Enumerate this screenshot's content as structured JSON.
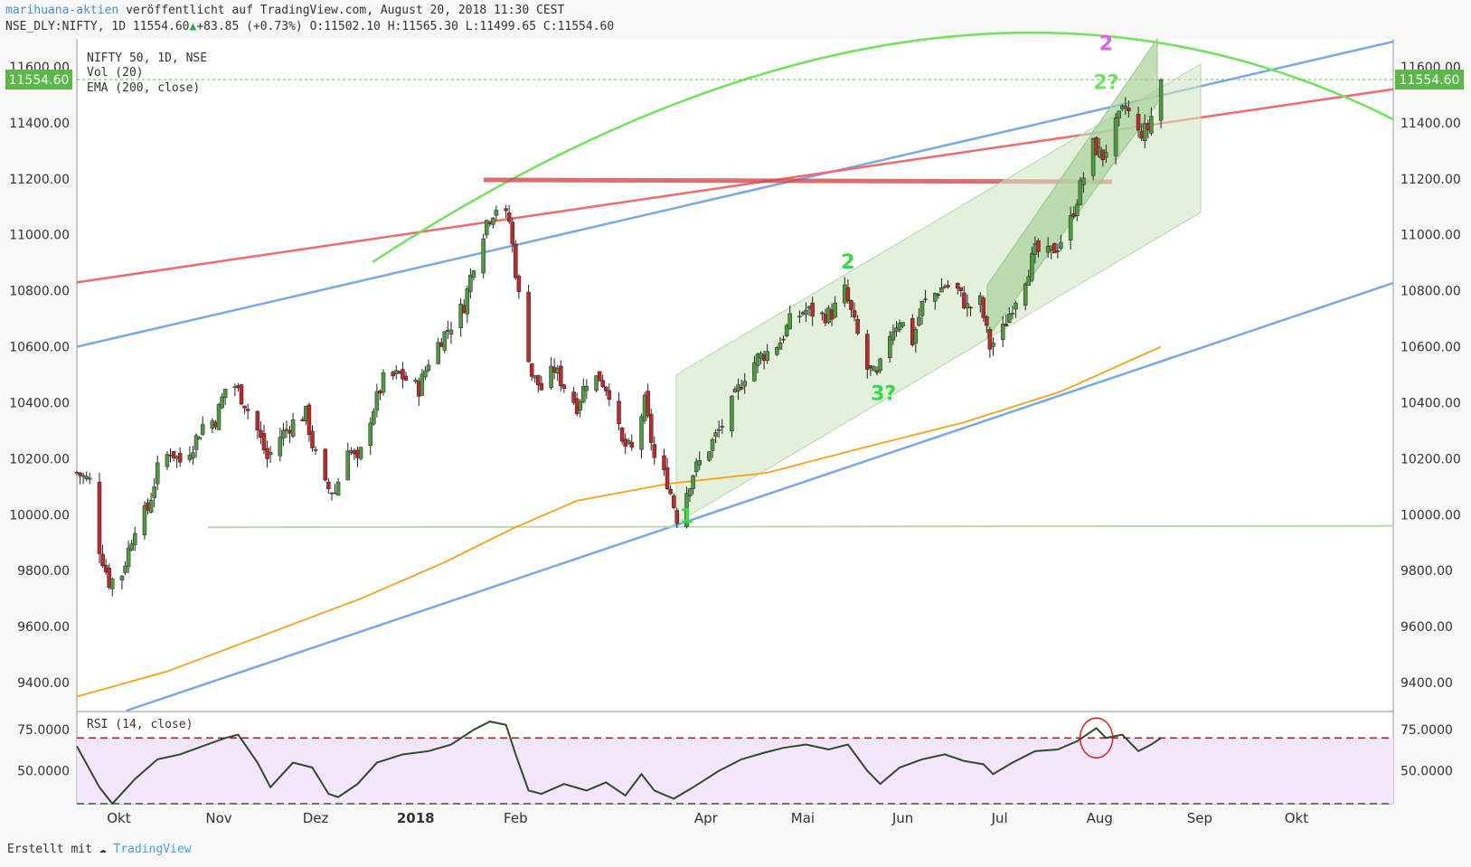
{
  "header": {
    "author": "marihuana-aktien",
    "published": "veröffentlicht auf TradingView.com, August 20, 2018 11:30 CEST",
    "symbol": "NSE_DLY:NIFTY, 1D",
    "last": "11554.60",
    "arrow": "▲",
    "change": "+83.85 (+0.73%)",
    "o_label": "O:",
    "o": "11502.10",
    "h_label": "H:",
    "h": "11565.30",
    "l_label": "L:",
    "l": "11499.65",
    "c_label": "C:",
    "c": "11554.60"
  },
  "legend": {
    "line1": "NIFTY 50, 1D, NSE",
    "line2": "Vol (20)",
    "line3": "EMA (200, close)"
  },
  "rsi_legend": "RSI (14, close)",
  "footer": {
    "made_with": "Erstellt mit",
    "brand": "TradingView"
  },
  "colors": {
    "up": "#4e9a3f",
    "down": "#c0282b",
    "ema": "#f5a11a",
    "rsi": "#2f4a2a",
    "rsi_band": "#f3e6fb",
    "blue_trend": "#7ba7e8",
    "red_trend": "#ef6b6b",
    "green_arc": "#6fe35a",
    "channel": "#cfe6c4",
    "price_tag": "#5bb848"
  },
  "chart_data": {
    "type": "candlestick",
    "title": "NIFTY 50, 1D, NSE",
    "price_axis": {
      "min": 9300,
      "max": 11700,
      "ticks": [
        9400,
        9600,
        9800,
        10000,
        10200,
        10400,
        10600,
        10800,
        11000,
        11200,
        11400,
        11600
      ],
      "tick_labels": [
        "9400.00",
        "9600.00",
        "9800.00",
        "10000.00",
        "10200.00",
        "10400.00",
        "10600.00",
        "10800.00",
        "11000.00",
        "11200.00",
        "11400.00",
        "11600.00"
      ],
      "last_price": 11554.6,
      "last_price_label": "11554.60"
    },
    "time_axis": {
      "start": "2017-09-18",
      "end": "2018-10-31",
      "ticks": [
        {
          "date": "2017-10-01",
          "label": "Okt"
        },
        {
          "date": "2017-11-01",
          "label": "Nov"
        },
        {
          "date": "2017-12-01",
          "label": "Dez"
        },
        {
          "date": "2018-01-01",
          "label": "2018"
        },
        {
          "date": "2018-02-01",
          "label": "Feb"
        },
        {
          "date": "2018-04-01",
          "label": "Apr"
        },
        {
          "date": "2018-05-01",
          "label": "Mai"
        },
        {
          "date": "2018-06-01",
          "label": "Jun"
        },
        {
          "date": "2018-07-01",
          "label": "Jul"
        },
        {
          "date": "2018-08-01",
          "label": "Aug"
        },
        {
          "date": "2018-09-01",
          "label": "Sep"
        },
        {
          "date": "2018-10-01",
          "label": "Okt"
        }
      ]
    },
    "close_anchors": [
      [
        "2017-09-18",
        10150
      ],
      [
        "2017-09-22",
        10120
      ],
      [
        "2017-09-25",
        9880
      ],
      [
        "2017-09-28",
        9760
      ],
      [
        "2017-10-02",
        9790
      ],
      [
        "2017-10-06",
        9960
      ],
      [
        "2017-10-10",
        10020
      ],
      [
        "2017-10-13",
        10160
      ],
      [
        "2017-10-17",
        10230
      ],
      [
        "2017-10-20",
        10190
      ],
      [
        "2017-10-24",
        10250
      ],
      [
        "2017-10-27",
        10320
      ],
      [
        "2017-10-31",
        10340
      ],
      [
        "2017-11-03",
        10450
      ],
      [
        "2017-11-06",
        10460
      ],
      [
        "2017-11-09",
        10400
      ],
      [
        "2017-11-13",
        10300
      ],
      [
        "2017-11-16",
        10200
      ],
      [
        "2017-11-20",
        10280
      ],
      [
        "2017-11-24",
        10330
      ],
      [
        "2017-11-28",
        10360
      ],
      [
        "2017-11-30",
        10250
      ],
      [
        "2017-12-04",
        10100
      ],
      [
        "2017-12-07",
        10080
      ],
      [
        "2017-12-11",
        10250
      ],
      [
        "2017-12-14",
        10180
      ],
      [
        "2017-12-18",
        10350
      ],
      [
        "2017-12-22",
        10480
      ],
      [
        "2017-12-27",
        10500
      ],
      [
        "2018-01-02",
        10450
      ],
      [
        "2018-01-05",
        10550
      ],
      [
        "2018-01-09",
        10630
      ],
      [
        "2018-01-12",
        10680
      ],
      [
        "2018-01-16",
        10750
      ],
      [
        "2018-01-19",
        10900
      ],
      [
        "2018-01-23",
        11050
      ],
      [
        "2018-01-26",
        11100
      ],
      [
        "2018-01-30",
        11050
      ],
      [
        "2018-02-02",
        10780
      ],
      [
        "2018-02-06",
        10500
      ],
      [
        "2018-02-09",
        10450
      ],
      [
        "2018-02-13",
        10520
      ],
      [
        "2018-02-16",
        10460
      ],
      [
        "2018-02-20",
        10390
      ],
      [
        "2018-02-23",
        10480
      ],
      [
        "2018-02-27",
        10490
      ],
      [
        "2018-03-02",
        10440
      ],
      [
        "2018-03-06",
        10250
      ],
      [
        "2018-03-09",
        10230
      ],
      [
        "2018-03-13",
        10400
      ],
      [
        "2018-03-16",
        10200
      ],
      [
        "2018-03-20",
        10120
      ],
      [
        "2018-03-23",
        9990
      ],
      [
        "2018-03-28",
        10150
      ],
      [
        "2018-04-02",
        10240
      ],
      [
        "2018-04-06",
        10320
      ],
      [
        "2018-04-10",
        10420
      ],
      [
        "2018-04-13",
        10500
      ],
      [
        "2018-04-17",
        10560
      ],
      [
        "2018-04-20",
        10580
      ],
      [
        "2018-04-24",
        10620
      ],
      [
        "2018-04-27",
        10690
      ],
      [
        "2018-05-02",
        10730
      ],
      [
        "2018-05-07",
        10710
      ],
      [
        "2018-05-10",
        10720
      ],
      [
        "2018-05-14",
        10800
      ],
      [
        "2018-05-17",
        10680
      ],
      [
        "2018-05-21",
        10520
      ],
      [
        "2018-05-24",
        10490
      ],
      [
        "2018-05-28",
        10650
      ],
      [
        "2018-05-31",
        10700
      ],
      [
        "2018-06-04",
        10620
      ],
      [
        "2018-06-07",
        10750
      ],
      [
        "2018-06-11",
        10790
      ],
      [
        "2018-06-14",
        10820
      ],
      [
        "2018-06-18",
        10800
      ],
      [
        "2018-06-21",
        10740
      ],
      [
        "2018-06-25",
        10760
      ],
      [
        "2018-06-28",
        10600
      ],
      [
        "2018-07-02",
        10660
      ],
      [
        "2018-07-05",
        10750
      ],
      [
        "2018-07-09",
        10850
      ],
      [
        "2018-07-12",
        10940
      ],
      [
        "2018-07-16",
        10930
      ],
      [
        "2018-07-19",
        10960
      ],
      [
        "2018-07-23",
        11050
      ],
      [
        "2018-07-26",
        11170
      ],
      [
        "2018-07-30",
        11320
      ],
      [
        "2018-08-02",
        11280
      ],
      [
        "2018-08-06",
        11390
      ],
      [
        "2018-08-09",
        11460
      ],
      [
        "2018-08-13",
        11360
      ],
      [
        "2018-08-16",
        11380
      ],
      [
        "2018-08-20",
        11554.6
      ]
    ],
    "ema_200": [
      [
        "2017-09-18",
        9350
      ],
      [
        "2017-10-16",
        9440
      ],
      [
        "2017-11-15",
        9570
      ],
      [
        "2017-12-15",
        9700
      ],
      [
        "2018-01-10",
        9830
      ],
      [
        "2018-01-31",
        9950
      ],
      [
        "2018-02-20",
        10050
      ],
      [
        "2018-03-20",
        10110
      ],
      [
        "2018-04-20",
        10150
      ],
      [
        "2018-05-20",
        10240
      ],
      [
        "2018-06-20",
        10330
      ],
      [
        "2018-07-20",
        10440
      ],
      [
        "2018-08-20",
        10600
      ]
    ],
    "rsi": {
      "axis": {
        "ticks": [
          50,
          75
        ],
        "tick_labels": [
          "50.0000",
          "75.0000"
        ],
        "min": 30,
        "max": 85
      },
      "overbought": 70,
      "oversold": 30,
      "values": [
        [
          "2017-09-18",
          65
        ],
        [
          "2017-09-25",
          40
        ],
        [
          "2017-09-29",
          30
        ],
        [
          "2017-10-06",
          45
        ],
        [
          "2017-10-13",
          57
        ],
        [
          "2017-10-20",
          60
        ],
        [
          "2017-10-27",
          65
        ],
        [
          "2017-11-03",
          70
        ],
        [
          "2017-11-07",
          72
        ],
        [
          "2017-11-13",
          55
        ],
        [
          "2017-11-17",
          40
        ],
        [
          "2017-11-24",
          55
        ],
        [
          "2017-11-30",
          52
        ],
        [
          "2017-12-05",
          36
        ],
        [
          "2017-12-08",
          34
        ],
        [
          "2017-12-14",
          42
        ],
        [
          "2017-12-20",
          55
        ],
        [
          "2017-12-28",
          60
        ],
        [
          "2018-01-05",
          62
        ],
        [
          "2018-01-12",
          66
        ],
        [
          "2018-01-19",
          75
        ],
        [
          "2018-01-24",
          80
        ],
        [
          "2018-01-29",
          78
        ],
        [
          "2018-02-01",
          60
        ],
        [
          "2018-02-05",
          38
        ],
        [
          "2018-02-09",
          36
        ],
        [
          "2018-02-16",
          42
        ],
        [
          "2018-02-23",
          38
        ],
        [
          "2018-03-01",
          43
        ],
        [
          "2018-03-07",
          35
        ],
        [
          "2018-03-12",
          48
        ],
        [
          "2018-03-16",
          38
        ],
        [
          "2018-03-22",
          33
        ],
        [
          "2018-03-28",
          40
        ],
        [
          "2018-04-05",
          50
        ],
        [
          "2018-04-12",
          57
        ],
        [
          "2018-04-19",
          61
        ],
        [
          "2018-04-25",
          64
        ],
        [
          "2018-05-02",
          66
        ],
        [
          "2018-05-09",
          63
        ],
        [
          "2018-05-15",
          66
        ],
        [
          "2018-05-21",
          50
        ],
        [
          "2018-05-25",
          42
        ],
        [
          "2018-05-31",
          52
        ],
        [
          "2018-06-07",
          57
        ],
        [
          "2018-06-14",
          60
        ],
        [
          "2018-06-20",
          56
        ],
        [
          "2018-06-26",
          54
        ],
        [
          "2018-06-29",
          48
        ],
        [
          "2018-07-05",
          55
        ],
        [
          "2018-07-12",
          62
        ],
        [
          "2018-07-19",
          63
        ],
        [
          "2018-07-25",
          68
        ],
        [
          "2018-07-31",
          76
        ],
        [
          "2018-08-03",
          70
        ],
        [
          "2018-08-08",
          72
        ],
        [
          "2018-08-13",
          62
        ],
        [
          "2018-08-17",
          66
        ],
        [
          "2018-08-20",
          70
        ]
      ]
    },
    "annotations": [
      {
        "text": "1",
        "date": "2018-03-26",
        "price": 9970,
        "color": "#39d94a"
      },
      {
        "text": "2",
        "date": "2018-05-15",
        "price": 10880,
        "color": "#39d94a"
      },
      {
        "text": "3?",
        "date": "2018-05-26",
        "price": 10410,
        "color": "#39d94a"
      },
      {
        "text": "2?",
        "date": "2018-08-03",
        "price": 11520,
        "color": "#6fe35a"
      },
      {
        "text": "2",
        "date": "2018-08-03",
        "price": 11660,
        "color": "#e060e0"
      }
    ]
  }
}
